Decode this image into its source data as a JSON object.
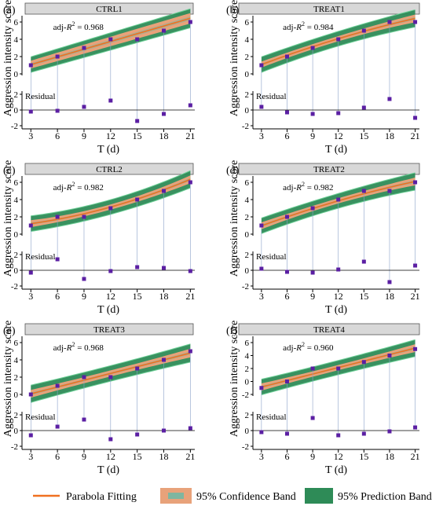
{
  "figure": {
    "ylabel": "Aggression intensity score",
    "xlabel": "T (d)",
    "residual_label": "Residual",
    "adj_prefix": "adj-",
    "legend": {
      "fit_label": "Parabola Fitting",
      "conf_label": "95% Confidence Band",
      "pred_label": "95% Prediction Band"
    },
    "colors": {
      "fit": "#f07020",
      "conf_fill": "#e8a27a",
      "conf_core": "#7fb6a0",
      "pred_fill": "#2e8b57",
      "pred_edge": "#6ccf96",
      "point": "#5b1fa3",
      "strip": "#d8d8d8",
      "dropline": "#8aa0c8"
    }
  },
  "chart_data": [
    {
      "type": "scatter",
      "panel": "(a)",
      "title": "CTRL1",
      "adj_r2": "0.968",
      "x": [
        3,
        6,
        9,
        12,
        15,
        18,
        21
      ],
      "y": [
        1,
        2,
        3,
        4,
        4,
        5,
        6
      ],
      "fit": {
        "c": 0.1786,
        "b": 0.2976,
        "a": 0
      },
      "conf_half": [
        0.45,
        0.55,
        0.6
      ],
      "pred_half": [
        0.9,
        1.0,
        1.1
      ],
      "residuals": [
        -0.2,
        -0.1,
        0.4,
        1.2,
        -1.4,
        -0.5,
        0.6
      ],
      "ylim": [
        0,
        6
      ],
      "yticks": [
        0,
        2,
        4,
        6
      ],
      "res_ylim": [
        -2,
        2
      ],
      "res_yticks": [
        -2,
        0,
        2
      ],
      "xticks": [
        3,
        6,
        9,
        12,
        15,
        18,
        21
      ]
    },
    {
      "type": "scatter",
      "panel": "(b)",
      "title": "TREAT1",
      "adj_r2": "0.984",
      "x": [
        3,
        6,
        9,
        12,
        15,
        18,
        21
      ],
      "y": [
        1,
        2,
        3,
        4,
        5,
        6,
        6
      ],
      "fit": {
        "c": -0.0714,
        "b": 0.3929,
        "a": -0.004
      },
      "conf_half": [
        0.35,
        0.3,
        0.45
      ],
      "pred_half": [
        0.9,
        0.85,
        1.0
      ],
      "residuals": [
        0.4,
        -0.3,
        -0.5,
        -0.4,
        0.3,
        1.4,
        -1.0
      ],
      "ylim": [
        0,
        6
      ],
      "yticks": [
        0,
        2,
        4,
        6
      ],
      "res_ylim": [
        -2,
        2
      ],
      "res_yticks": [
        -2,
        0,
        2
      ],
      "xticks": [
        3,
        6,
        9,
        12,
        15,
        18,
        21
      ]
    },
    {
      "type": "scatter",
      "panel": "(c)",
      "title": "CTRL2",
      "adj_r2": "0.982",
      "x": [
        3,
        6,
        9,
        12,
        15,
        18,
        21
      ],
      "y": [
        1,
        2,
        2,
        3,
        4,
        5,
        6
      ],
      "fit": {
        "c": 0.8571,
        "b": 0.0952,
        "a": 0.0079
      },
      "conf_half": [
        0.4,
        0.3,
        0.45
      ],
      "pred_half": [
        0.9,
        0.85,
        1.0
      ],
      "residuals": [
        -0.3,
        1.4,
        -1.1,
        -0.1,
        0.4,
        0.3,
        -0.1
      ],
      "ylim": [
        0,
        6
      ],
      "yticks": [
        0,
        2,
        4,
        6
      ],
      "res_ylim": [
        -2,
        2
      ],
      "res_yticks": [
        -2,
        0,
        2
      ],
      "xticks": [
        3,
        6,
        9,
        12,
        15,
        18,
        21
      ]
    },
    {
      "type": "scatter",
      "panel": "(d)",
      "title": "TREAT2",
      "adj_r2": "0.982",
      "x": [
        3,
        6,
        9,
        12,
        15,
        18,
        21
      ],
      "y": [
        1,
        2,
        3,
        4,
        5,
        5,
        6
      ],
      "fit": {
        "c": -0.1429,
        "b": 0.381,
        "a": -0.004
      },
      "conf_half": [
        0.4,
        0.3,
        0.45
      ],
      "pred_half": [
        0.9,
        0.85,
        1.0
      ],
      "residuals": [
        0.2,
        -0.2,
        -0.3,
        0.1,
        1.1,
        -1.5,
        0.6
      ],
      "ylim": [
        0,
        6
      ],
      "yticks": [
        0,
        2,
        4,
        6
      ],
      "res_ylim": [
        -2,
        2
      ],
      "res_yticks": [
        -2,
        0,
        2
      ],
      "xticks": [
        3,
        6,
        9,
        12,
        15,
        18,
        21
      ]
    },
    {
      "type": "scatter",
      "panel": "(e)",
      "title": "TREAT3",
      "adj_r2": "0.968",
      "x": [
        3,
        6,
        9,
        12,
        15,
        18,
        21
      ],
      "y": [
        0,
        1,
        2,
        2,
        3,
        4,
        5
      ],
      "fit": {
        "c": -0.7143,
        "b": 0.2619,
        "a": 0.0
      },
      "conf_half": [
        0.45,
        0.35,
        0.5
      ],
      "pred_half": [
        1.0,
        0.9,
        1.05
      ],
      "residuals": [
        -0.6,
        0.5,
        1.4,
        -1.1,
        -0.5,
        0.0,
        0.3
      ],
      "ylim": [
        0,
        6
      ],
      "yticks": [
        0,
        2,
        4,
        6
      ],
      "res_ylim": [
        -2,
        2
      ],
      "res_yticks": [
        -2,
        0,
        2
      ],
      "xticks": [
        3,
        6,
        9,
        12,
        15,
        18,
        21
      ]
    },
    {
      "type": "scatter",
      "panel": "(f)",
      "title": "TREAT4",
      "adj_r2": "0.960",
      "x": [
        3,
        6,
        9,
        12,
        15,
        18,
        21
      ],
      "y": [
        -1,
        0,
        2,
        2,
        3,
        4,
        5
      ],
      "fit": {
        "c": -1.8571,
        "b": 0.3333,
        "a": 0.0
      },
      "conf_half": [
        0.55,
        0.4,
        0.6
      ],
      "pred_half": [
        1.2,
        1.1,
        1.3
      ],
      "residuals": [
        -0.2,
        -0.4,
        1.6,
        -0.6,
        -0.4,
        -0.1,
        0.4
      ],
      "ylim": [
        -2,
        6
      ],
      "yticks": [
        -2,
        0,
        2,
        4,
        6
      ],
      "res_ylim": [
        -2,
        2
      ],
      "res_yticks": [
        -2,
        0,
        2
      ],
      "xticks": [
        3,
        6,
        9,
        12,
        15,
        18,
        21
      ]
    }
  ]
}
